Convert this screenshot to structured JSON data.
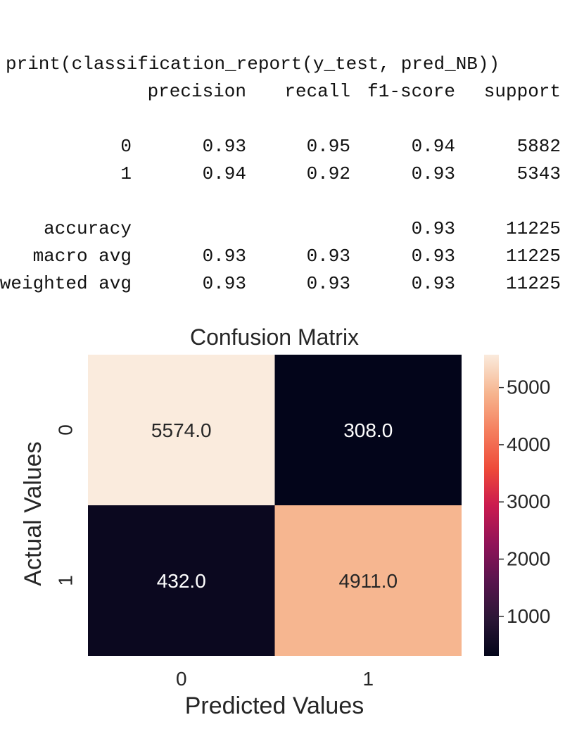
{
  "report": {
    "command": "print(classification_report(y_test, pred_NB))",
    "headers": [
      "precision",
      "recall",
      "f1-score",
      "support"
    ],
    "rows": [
      {
        "label": "0",
        "precision": "0.93",
        "recall": "0.95",
        "f1": "0.94",
        "support": "5882"
      },
      {
        "label": "1",
        "precision": "0.94",
        "recall": "0.92",
        "f1": "0.93",
        "support": "5343"
      }
    ],
    "summary": [
      {
        "label": "accuracy",
        "precision": "",
        "recall": "",
        "f1": "0.93",
        "support": "11225"
      },
      {
        "label": "macro avg",
        "precision": "0.93",
        "recall": "0.93",
        "f1": "0.93",
        "support": "11225"
      },
      {
        "label": "weighted avg",
        "precision": "0.93",
        "recall": "0.93",
        "f1": "0.93",
        "support": "11225"
      }
    ]
  },
  "chart_data": {
    "type": "heatmap",
    "title": "Confusion Matrix",
    "xlabel": "Predicted Values",
    "ylabel": "Actual Values",
    "x_categories": [
      "0",
      "1"
    ],
    "y_categories": [
      "0",
      "1"
    ],
    "values": [
      [
        5574.0,
        308.0
      ],
      [
        432.0,
        4911.0
      ]
    ],
    "annotations": [
      [
        "5574.0",
        "308.0"
      ],
      [
        "432.0",
        "4911.0"
      ]
    ],
    "colormap": "rocket",
    "colorbar": {
      "range": [
        308.0,
        5574.0
      ],
      "ticks": [
        1000,
        2000,
        3000,
        4000,
        5000
      ],
      "tick_labels": [
        "1000",
        "2000",
        "3000",
        "4000",
        "5000"
      ]
    },
    "annotation_colors": {
      "light": "#ffffff",
      "dark": "#262626"
    }
  }
}
